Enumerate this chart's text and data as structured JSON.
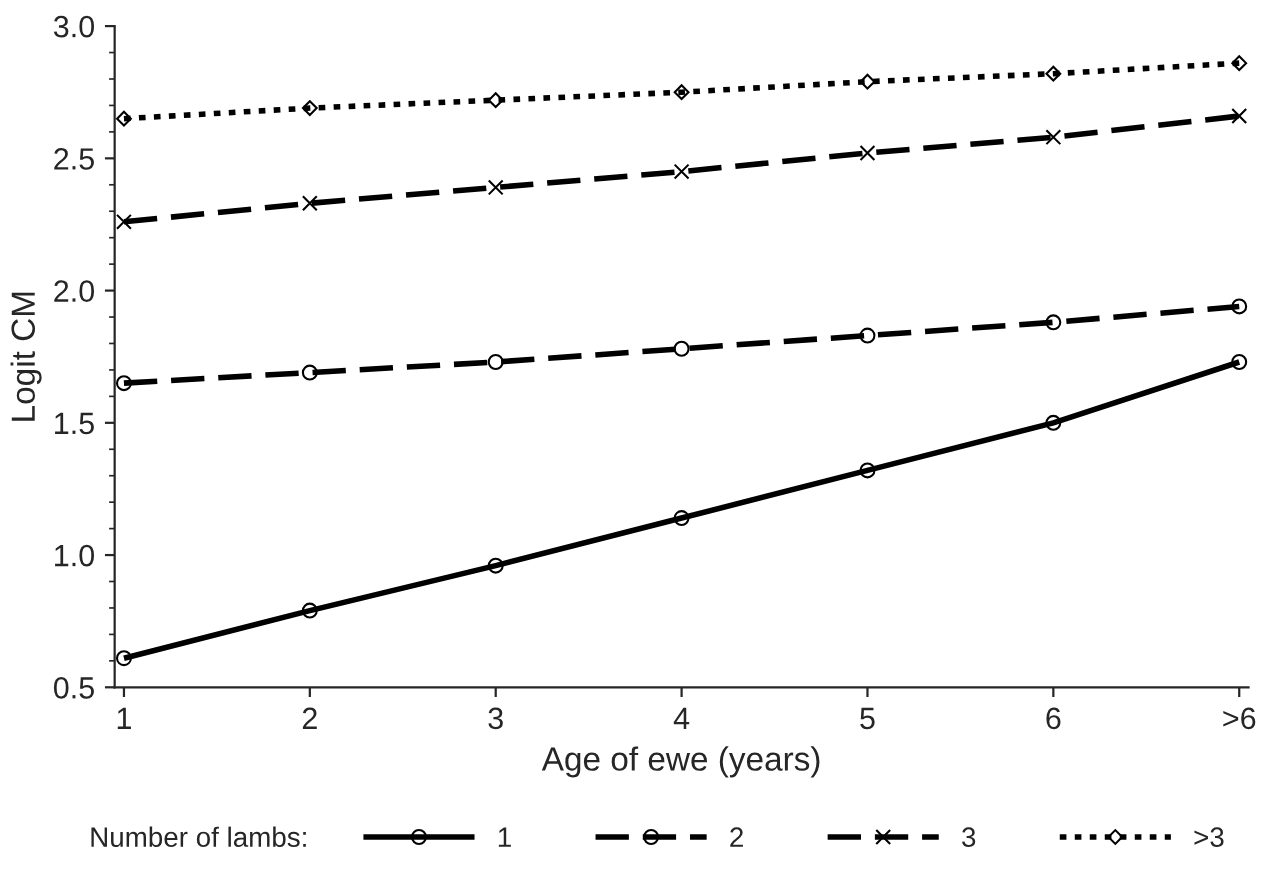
{
  "chart_data": {
    "type": "line",
    "xlabel": "Age of ewe (years)",
    "ylabel": "Logit CM",
    "legend_title": "Number of lambs:",
    "categories": [
      "1",
      "2",
      "3",
      "4",
      "5",
      "6",
      ">6"
    ],
    "ylim": [
      0.5,
      3.0
    ],
    "yticks": [
      {
        "value": 0.5,
        "label": "0.5"
      },
      {
        "value": 1.0,
        "label": "1.0"
      },
      {
        "value": 1.5,
        "label": "1.5"
      },
      {
        "value": 2.0,
        "label": "2.0"
      },
      {
        "value": 2.5,
        "label": "2.5"
      },
      {
        "value": 3.0,
        "label": "3.0"
      }
    ],
    "grid": false,
    "legend": "bottom",
    "series": [
      {
        "name": "1",
        "color": "#000000",
        "marker": "circle",
        "line_style": "solid",
        "values": [
          0.61,
          0.79,
          0.96,
          1.14,
          1.32,
          1.5,
          1.73
        ]
      },
      {
        "name": "2",
        "color": "#000000",
        "marker": "circle",
        "line_style": "dashed",
        "values": [
          1.65,
          1.69,
          1.73,
          1.78,
          1.83,
          1.88,
          1.94
        ]
      },
      {
        "name": "3",
        "color": "#000000",
        "marker": "cross",
        "line_style": "dashed",
        "values": [
          2.26,
          2.33,
          2.39,
          2.45,
          2.52,
          2.58,
          2.66
        ]
      },
      {
        "name": ">3",
        "color": "#000000",
        "marker": "diamond",
        "line_style": "dotted",
        "values": [
          2.65,
          2.69,
          2.72,
          2.75,
          2.79,
          2.82,
          2.86
        ]
      }
    ]
  }
}
